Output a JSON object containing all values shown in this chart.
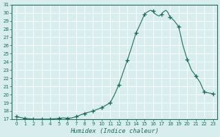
{
  "xlabel": "Humidex (Indice chaleur)",
  "ylabel": "",
  "x": [
    0,
    1,
    2,
    3,
    4,
    5,
    6,
    7,
    8,
    9,
    10,
    11,
    12,
    13,
    14,
    15,
    16,
    17,
    18,
    19,
    20,
    21,
    22,
    23
  ],
  "y": [
    17.3,
    17.1,
    17.0,
    17.0,
    17.0,
    17.1,
    17.1,
    17.3,
    17.7,
    18.0,
    18.4,
    19.0,
    21.2,
    24.2,
    27.5,
    29.8,
    30.2,
    29.8,
    29.5,
    28.3,
    24.3,
    22.3,
    20.3,
    20.1
  ],
  "x_fine": [
    0,
    0.5,
    1,
    1.5,
    2,
    2.5,
    3,
    3.5,
    4,
    4.5,
    5,
    5.5,
    6,
    6.5,
    7,
    7.5,
    8,
    8.5,
    9,
    9.5,
    10,
    10.5,
    11,
    11.5,
    12,
    12.5,
    13,
    13.5,
    14,
    14.5,
    15,
    15.2,
    15.5,
    15.7,
    16,
    16.2,
    16.5,
    16.7,
    17,
    17.2,
    17.5,
    17.7,
    18,
    18.5,
    19,
    19.5,
    20,
    20.5,
    21,
    21.5,
    22,
    22.5,
    23
  ],
  "y_fine": [
    17.3,
    17.2,
    17.1,
    17.05,
    17.0,
    17.0,
    17.0,
    17.0,
    17.0,
    17.05,
    17.1,
    17.15,
    17.1,
    17.15,
    17.3,
    17.5,
    17.7,
    17.85,
    18.0,
    18.2,
    18.4,
    18.7,
    19.0,
    20.0,
    21.2,
    22.7,
    24.2,
    25.8,
    27.5,
    28.6,
    29.8,
    30.0,
    30.2,
    30.3,
    30.2,
    29.9,
    29.7,
    29.6,
    29.8,
    30.1,
    30.3,
    30.1,
    29.5,
    29.0,
    28.3,
    26.0,
    24.3,
    23.0,
    22.3,
    21.5,
    20.3,
    20.2,
    20.1
  ],
  "xlim": [
    -0.5,
    23.5
  ],
  "ylim": [
    17,
    31
  ],
  "yticks": [
    17,
    18,
    19,
    20,
    21,
    22,
    23,
    24,
    25,
    26,
    27,
    28,
    29,
    30,
    31
  ],
  "xticks": [
    0,
    1,
    2,
    3,
    4,
    5,
    6,
    7,
    8,
    9,
    10,
    11,
    12,
    13,
    14,
    15,
    16,
    17,
    18,
    19,
    20,
    21,
    22,
    23
  ],
  "line_color": "#1a6b5a",
  "bg_color": "#d8eeee",
  "grid_color": "#ffffff",
  "marker_color": "#1a6b5a",
  "axis_color": "#1a6b5a",
  "text_color": "#1a6b5a"
}
